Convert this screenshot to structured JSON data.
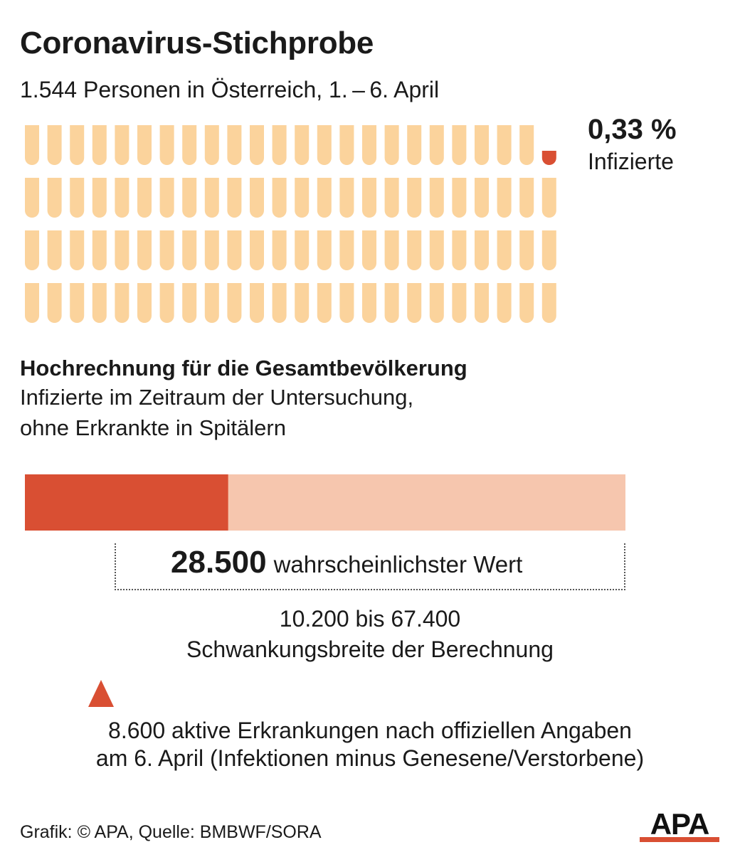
{
  "title": "Coronavirus-Stichprobe",
  "subtitle": "1.544 Personen in Österreich, 1. – 6. April",
  "sample": {
    "percent_label": "0,33 %",
    "percent_caption": "Infizierte",
    "tube_total": 96,
    "tube_infected": 1
  },
  "projection": {
    "heading": "Hochrechnung für die Gesamtbevölkerung",
    "line1": "Infizierte im Zeitraum der Untersuchung,",
    "line2": "ohne Erkrankte in Spitälern",
    "likely_value": "28.500",
    "likely_label": "wahrscheinlichster Wert",
    "range_text": "10.200 bis 67.400",
    "range_label": "Schwankungsbreite der Berechnung",
    "official_line1": "8.600 aktive Erkrankungen nach offiziellen Angaben",
    "official_line2": "am 6. April (Infektionen minus Genesene/Verstorbene)"
  },
  "source": "Grafik: © APA, Quelle: BMBWF/SORA",
  "logo_text": "APA",
  "colors": {
    "accent": "#d94f33",
    "tube": "#fbd39c",
    "range_bar": "#f6c6ae",
    "text": "#1a1a1a"
  },
  "chart_data": [
    {
      "type": "pictogram",
      "title": "Coronavirus-Stichprobe",
      "total_persons": 1544,
      "infected_percent": 0.33,
      "label": "Infizierte"
    },
    {
      "type": "bar",
      "title": "Hochrechnung für die Gesamtbevölkerung",
      "range": [
        10200,
        67400
      ],
      "likely_value": 28500,
      "official_active": 8600,
      "xlim": [
        8600,
        67400
      ]
    }
  ]
}
